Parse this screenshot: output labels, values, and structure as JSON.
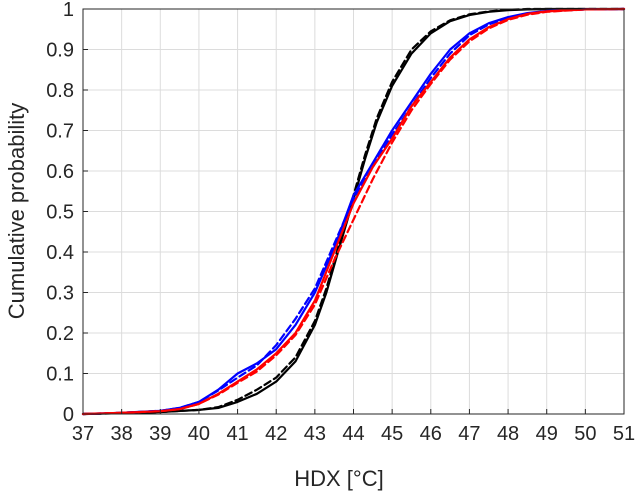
{
  "chart_data": {
    "type": "line",
    "title": "",
    "xlabel": "HDX [°C]",
    "ylabel": "Cumulative probability",
    "xlim": [
      37,
      51
    ],
    "ylim": [
      0,
      1
    ],
    "xticks": [
      "37",
      "38",
      "39",
      "40",
      "41",
      "42",
      "43",
      "44",
      "45",
      "46",
      "47",
      "48",
      "49",
      "50",
      "51"
    ],
    "yticks": [
      "0",
      "0.1",
      "0.2",
      "0.3",
      "0.4",
      "0.5",
      "0.6",
      "0.7",
      "0.8",
      "0.9",
      "1"
    ],
    "grid": true,
    "legend": "none",
    "series": [
      {
        "color": "#000000",
        "dash": "solid",
        "x": [
          37,
          38,
          39,
          40,
          40.5,
          41,
          41.5,
          42,
          42.5,
          43,
          43.3,
          43.6,
          44,
          44.3,
          44.6,
          45,
          45.5,
          46,
          46.5,
          47,
          47.5,
          48,
          48.5,
          49,
          50,
          51
        ],
        "y": [
          0,
          0.002,
          0.005,
          0.01,
          0.015,
          0.03,
          0.05,
          0.08,
          0.13,
          0.22,
          0.3,
          0.4,
          0.53,
          0.63,
          0.72,
          0.81,
          0.89,
          0.94,
          0.97,
          0.985,
          0.993,
          0.997,
          0.999,
          1,
          1,
          1
        ]
      },
      {
        "color": "#000000",
        "dash": "dashed",
        "x": [
          37,
          38,
          39,
          40,
          40.5,
          41,
          41.5,
          42,
          42.5,
          43,
          43.3,
          43.6,
          44,
          44.3,
          44.6,
          45,
          45.5,
          46,
          46.5,
          47,
          47.5,
          48,
          48.5,
          49,
          50,
          51
        ],
        "y": [
          0,
          0.002,
          0.005,
          0.01,
          0.017,
          0.035,
          0.06,
          0.09,
          0.14,
          0.23,
          0.31,
          0.41,
          0.54,
          0.64,
          0.73,
          0.82,
          0.9,
          0.945,
          0.972,
          0.987,
          0.994,
          0.998,
          1,
          1,
          1,
          1
        ]
      },
      {
        "color": "#0000ff",
        "dash": "solid",
        "x": [
          37,
          38,
          39,
          39.5,
          40,
          40.5,
          41,
          41.5,
          42,
          42.5,
          43,
          43.5,
          44,
          44.5,
          45,
          45.5,
          46,
          46.5,
          47,
          47.5,
          48,
          48.5,
          49,
          50,
          51
        ],
        "y": [
          0,
          0.003,
          0.008,
          0.015,
          0.03,
          0.06,
          0.1,
          0.125,
          0.16,
          0.22,
          0.3,
          0.41,
          0.54,
          0.62,
          0.7,
          0.77,
          0.84,
          0.9,
          0.94,
          0.965,
          0.98,
          0.99,
          0.995,
          0.999,
          1
        ]
      },
      {
        "color": "#0000ff",
        "dash": "dashed",
        "x": [
          37,
          38,
          39,
          39.5,
          40,
          40.5,
          41,
          41.5,
          42,
          42.5,
          43,
          43.5,
          44,
          44.5,
          45,
          45.5,
          46,
          46.5,
          47,
          47.5,
          48,
          48.5,
          49,
          50,
          51
        ],
        "y": [
          0,
          0.003,
          0.008,
          0.015,
          0.03,
          0.058,
          0.09,
          0.12,
          0.17,
          0.235,
          0.31,
          0.42,
          0.53,
          0.61,
          0.69,
          0.76,
          0.83,
          0.89,
          0.935,
          0.962,
          0.978,
          0.988,
          0.994,
          0.999,
          1
        ]
      },
      {
        "color": "#ff0000",
        "dash": "solid",
        "x": [
          37,
          38,
          39,
          39.5,
          40,
          40.5,
          41,
          41.5,
          42,
          42.5,
          43,
          43.5,
          44,
          44.5,
          45,
          45.5,
          46,
          46.5,
          47,
          47.5,
          48,
          48.5,
          49,
          50,
          51
        ],
        "y": [
          0,
          0.003,
          0.007,
          0.012,
          0.025,
          0.05,
          0.08,
          0.11,
          0.15,
          0.2,
          0.28,
          0.4,
          0.52,
          0.61,
          0.68,
          0.76,
          0.82,
          0.88,
          0.925,
          0.955,
          0.975,
          0.988,
          0.994,
          0.999,
          1
        ]
      },
      {
        "color": "#ff0000",
        "dash": "dashed",
        "x": [
          37,
          38,
          39,
          39.5,
          40,
          40.5,
          41,
          41.5,
          42,
          42.5,
          43,
          43.5,
          44,
          44.5,
          45,
          45.5,
          46,
          46.5,
          47,
          47.5,
          48,
          48.5,
          49,
          50,
          51
        ],
        "y": [
          0,
          0.003,
          0.007,
          0.012,
          0.025,
          0.048,
          0.077,
          0.105,
          0.145,
          0.195,
          0.27,
          0.38,
          0.48,
          0.58,
          0.67,
          0.75,
          0.815,
          0.875,
          0.92,
          0.952,
          0.973,
          0.986,
          0.993,
          0.999,
          1
        ]
      }
    ]
  }
}
